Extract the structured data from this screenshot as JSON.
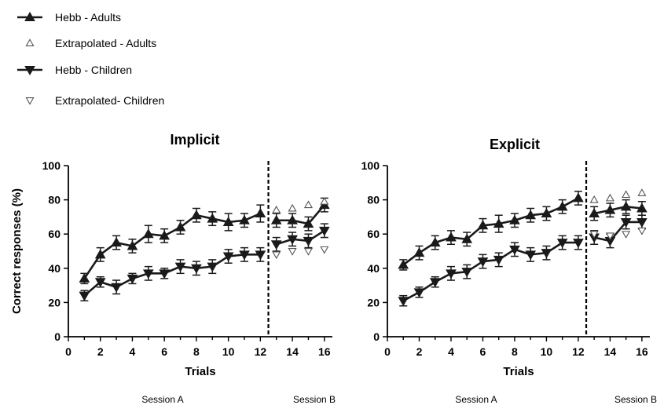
{
  "legend": {
    "items": [
      {
        "label": "Hebb - Adults",
        "marker": "filled-up-triangle",
        "line": true
      },
      {
        "label": "Extrapolated - Adults",
        "marker": "open-up-triangle",
        "line": false
      },
      {
        "label": "Hebb - Children",
        "marker": "filled-down-triangle",
        "line": true
      },
      {
        "label": "Extrapolated- Children",
        "marker": "open-down-triangle",
        "line": false
      }
    ]
  },
  "colors": {
    "line": "#1a1a1a",
    "open_marker": "#555555"
  },
  "shared_ylabel": "Correct responses (%)",
  "chart_data": [
    {
      "type": "line",
      "title": "Implicit",
      "xlabel": "Trials",
      "ylabel": "Correct responses (%)",
      "xlim": [
        0,
        16.5
      ],
      "ylim": [
        0,
        100
      ],
      "xticks": [
        0,
        2,
        4,
        6,
        8,
        10,
        12,
        14,
        16
      ],
      "yticks": [
        0,
        20,
        40,
        60,
        80,
        100
      ],
      "session_divider_x": 12.5,
      "session_labels": [
        "Session A",
        "Session B"
      ],
      "series": [
        {
          "name": "Hebb - Adults",
          "marker": "filled-up-triangle",
          "x": [
            1,
            2,
            3,
            4,
            5,
            6,
            7,
            8,
            9,
            10,
            11,
            12
          ],
          "values": [
            34,
            48,
            55,
            53,
            60,
            59,
            64,
            71,
            69,
            67,
            68,
            72
          ],
          "error": [
            3,
            4,
            4,
            4,
            5,
            4,
            4,
            4,
            4,
            5,
            4,
            5
          ]
        },
        {
          "name": "Hebb - Adults",
          "marker": "filled-up-triangle",
          "x": [
            13,
            14,
            15,
            16
          ],
          "values": [
            68,
            68,
            66,
            77
          ],
          "error": [
            4,
            4,
            4,
            4
          ]
        },
        {
          "name": "Hebb - Children",
          "marker": "filled-down-triangle",
          "x": [
            1,
            2,
            3,
            4,
            5,
            6,
            7,
            8,
            9,
            10,
            11,
            12
          ],
          "values": [
            24,
            32,
            29,
            34,
            37,
            37,
            41,
            40,
            41,
            47,
            48,
            48
          ],
          "error": [
            3,
            3,
            4,
            3,
            4,
            3,
            4,
            4,
            4,
            4,
            4,
            4
          ]
        },
        {
          "name": "Hebb - Children",
          "marker": "filled-down-triangle",
          "x": [
            13,
            14,
            15,
            16
          ],
          "values": [
            54,
            57,
            56,
            62
          ],
          "error": [
            4,
            4,
            4,
            4
          ]
        },
        {
          "name": "Extrapolated - Adults",
          "marker": "open-up-triangle",
          "x": [
            13,
            14,
            15,
            16
          ],
          "values": [
            74,
            75,
            77,
            79
          ]
        },
        {
          "name": "Extrapolated- Children",
          "marker": "open-down-triangle",
          "x": [
            13,
            14,
            15,
            16
          ],
          "values": [
            48,
            50,
            50,
            51
          ]
        }
      ]
    },
    {
      "type": "line",
      "title": "Explicit",
      "xlabel": "Trials",
      "ylabel": "",
      "xlim": [
        0,
        16.5
      ],
      "ylim": [
        0,
        100
      ],
      "xticks": [
        0,
        2,
        4,
        6,
        8,
        10,
        12,
        14,
        16
      ],
      "yticks": [
        0,
        20,
        40,
        60,
        80,
        100
      ],
      "session_divider_x": 12.5,
      "session_labels": [
        "Session A",
        "Session B"
      ],
      "series": [
        {
          "name": "Hebb - Adults",
          "marker": "filled-up-triangle",
          "x": [
            1,
            2,
            3,
            4,
            5,
            6,
            7,
            8,
            9,
            10,
            11,
            12
          ],
          "values": [
            42,
            49,
            55,
            58,
            57,
            65,
            66,
            68,
            71,
            72,
            76,
            81
          ],
          "error": [
            3,
            4,
            4,
            4,
            4,
            4,
            5,
            4,
            4,
            4,
            4,
            4
          ]
        },
        {
          "name": "Hebb - Adults",
          "marker": "filled-up-triangle",
          "x": [
            13,
            14,
            15,
            16
          ],
          "values": [
            72,
            74,
            76,
            75
          ],
          "error": [
            4,
            4,
            4,
            4
          ]
        },
        {
          "name": "Hebb - Children",
          "marker": "filled-down-triangle",
          "x": [
            1,
            2,
            3,
            4,
            5,
            6,
            7,
            8,
            9,
            10,
            11,
            12
          ],
          "values": [
            21,
            26,
            32,
            37,
            38,
            44,
            45,
            51,
            48,
            49,
            55,
            55
          ],
          "error": [
            3,
            3,
            3,
            4,
            4,
            4,
            4,
            4,
            4,
            4,
            4,
            4
          ]
        },
        {
          "name": "Hebb - Children",
          "marker": "filled-down-triangle",
          "x": [
            13,
            14,
            15,
            16
          ],
          "values": [
            58,
            56,
            67,
            67
          ],
          "error": [
            4,
            4,
            4,
            4
          ]
        },
        {
          "name": "Extrapolated - Adults",
          "marker": "open-up-triangle",
          "x": [
            13,
            14,
            15,
            16
          ],
          "values": [
            80,
            81,
            83,
            84
          ]
        },
        {
          "name": "Extrapolated- Children",
          "marker": "open-down-triangle",
          "x": [
            13,
            14,
            15,
            16
          ],
          "values": [
            60,
            59,
            60,
            62
          ]
        }
      ]
    }
  ]
}
